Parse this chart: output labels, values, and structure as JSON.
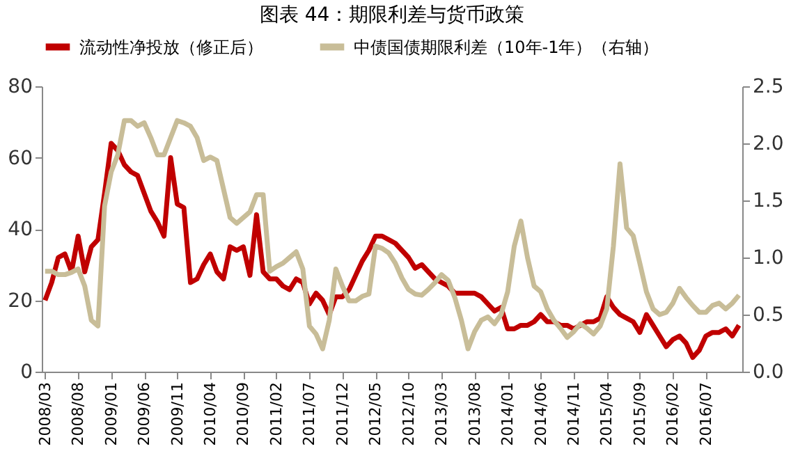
{
  "chart_data": {
    "type": "line",
    "title": "图表 44：期限利差与货币政策",
    "categories": [
      "2008/03",
      null,
      null,
      null,
      null,
      "2008/08",
      null,
      null,
      null,
      null,
      "2009/01",
      null,
      null,
      null,
      null,
      "2009/06",
      null,
      null,
      null,
      null,
      "2009/11",
      null,
      null,
      null,
      null,
      "2010/04",
      null,
      null,
      null,
      null,
      "2010/09",
      null,
      null,
      null,
      null,
      "2011/02",
      null,
      null,
      null,
      null,
      "2011/07",
      null,
      null,
      null,
      null,
      "2011/12",
      null,
      null,
      null,
      null,
      "2012/05",
      null,
      null,
      null,
      null,
      "2012/10",
      null,
      null,
      null,
      null,
      "2013/03",
      null,
      null,
      null,
      null,
      "2013/08",
      null,
      null,
      null,
      null,
      "2014/01",
      null,
      null,
      null,
      null,
      "2014/06",
      null,
      null,
      null,
      null,
      "2014/11",
      null,
      null,
      null,
      null,
      "2015/04",
      null,
      null,
      null,
      null,
      "2015/09",
      null,
      null,
      null,
      null,
      "2016/02",
      null,
      null,
      null,
      null,
      "2016/07",
      null,
      null,
      null,
      null,
      null
    ],
    "series": [
      {
        "name": "流动性净投放（修正后）",
        "color": "#c00000",
        "values": [
          20,
          25,
          32,
          33,
          28,
          38,
          28,
          35,
          37,
          50,
          64,
          62,
          58,
          56,
          55,
          50,
          45,
          42,
          38,
          60,
          47,
          46,
          25,
          26,
          30,
          33,
          28,
          26,
          35,
          34,
          35,
          27,
          44,
          28,
          26,
          26,
          24,
          23,
          26,
          25,
          19,
          22,
          20,
          16,
          21,
          21,
          23,
          27,
          31,
          34,
          38,
          38,
          37,
          36,
          34,
          32,
          29,
          30,
          28,
          26,
          25,
          24,
          22,
          22,
          22,
          22,
          21,
          19,
          17,
          18,
          12,
          12,
          13,
          13,
          14,
          16,
          14,
          14,
          13,
          13,
          12,
          13,
          14,
          14,
          15,
          21,
          18,
          16,
          15,
          14,
          11,
          16,
          13,
          10,
          7,
          9,
          10,
          8,
          4,
          6,
          10,
          11,
          11,
          12,
          10,
          13
        ]
      },
      {
        "name": "中债国债期限利差（10年-1年）（右轴）",
        "color": "#c8bd98",
        "axis": "y2",
        "values": [
          0.88,
          0.88,
          0.85,
          0.85,
          0.87,
          0.9,
          0.75,
          0.45,
          0.4,
          1.45,
          1.75,
          1.9,
          2.2,
          2.2,
          2.15,
          2.18,
          2.05,
          1.9,
          1.9,
          2.05,
          2.2,
          2.18,
          2.15,
          2.05,
          1.85,
          1.88,
          1.85,
          1.6,
          1.35,
          1.3,
          1.35,
          1.4,
          1.55,
          1.55,
          0.88,
          0.92,
          0.95,
          1.0,
          1.05,
          0.9,
          0.4,
          0.33,
          0.2,
          0.45,
          0.9,
          0.75,
          0.62,
          0.62,
          0.66,
          0.68,
          1.1,
          1.08,
          1.04,
          0.95,
          0.82,
          0.72,
          0.68,
          0.67,
          0.72,
          0.78,
          0.85,
          0.8,
          0.65,
          0.45,
          0.2,
          0.35,
          0.45,
          0.48,
          0.42,
          0.5,
          0.7,
          1.1,
          1.32,
          1.0,
          0.75,
          0.7,
          0.55,
          0.45,
          0.38,
          0.3,
          0.35,
          0.42,
          0.38,
          0.33,
          0.4,
          0.55,
          1.1,
          1.82,
          1.26,
          1.19,
          0.95,
          0.7,
          0.55,
          0.5,
          0.52,
          0.6,
          0.73,
          0.65,
          0.58,
          0.52,
          0.52,
          0.58,
          0.6,
          0.55,
          0.6,
          0.67
        ]
      }
    ],
    "ylim": [
      0,
      80
    ],
    "yticks": [
      0,
      20,
      40,
      60,
      80
    ],
    "y2lim": [
      0,
      2.5
    ],
    "y2ticks": [
      {
        "value": 0,
        "label": "0.0"
      },
      {
        "value": 0.5,
        "label": "0.5"
      },
      {
        "value": 1,
        "label": "1.0"
      },
      {
        "value": 1.5,
        "label": "1.5"
      },
      {
        "value": 2,
        "label": "2.0"
      },
      {
        "value": 2.5,
        "label": "2.5"
      }
    ],
    "grid": false,
    "legend": "top",
    "line_style": "solid",
    "marker": "none"
  }
}
